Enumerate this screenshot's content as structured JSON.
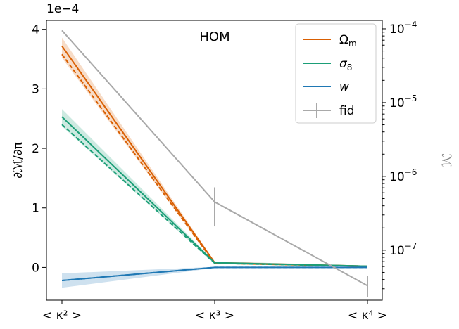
{
  "chart_data": {
    "type": "line",
    "categories": [
      "< κ² >",
      "< κ³ >",
      "< κ⁴ >"
    ],
    "annotation": "HOM",
    "left_axis": {
      "label": "∂ℳ/∂π",
      "offset_label": "1e−4",
      "ylim": [
        -0.55,
        4.15
      ],
      "ticks": [
        0,
        1,
        2,
        3,
        4
      ],
      "tick_labels": [
        "0",
        "1",
        "2",
        "3",
        "4"
      ]
    },
    "right_axis": {
      "label": "ℳ",
      "scale": "log",
      "ylim": [
        2.1e-08,
        0.00013
      ],
      "ticks": [
        1e-07,
        1e-06,
        1e-05,
        0.0001
      ],
      "tick_labels": [
        {
          "base": "10",
          "exp": "−7"
        },
        {
          "base": "10",
          "exp": "−6"
        },
        {
          "base": "10",
          "exp": "−5"
        },
        {
          "base": "10",
          "exp": "−4"
        }
      ]
    },
    "series": [
      {
        "name": "Ωm",
        "name_base": "Ω",
        "name_sub": "m",
        "color": "#d95f02",
        "values": [
          3.72,
          0.08,
          0.02
        ],
        "dashed": [
          3.58,
          0.07,
          0.02
        ],
        "band": [
          [
            3.52,
            3.86
          ],
          [
            0.06,
            0.1
          ],
          [
            0.01,
            0.03
          ]
        ]
      },
      {
        "name": "σ8",
        "name_base": "σ",
        "name_sub": "8",
        "color": "#1b9e77",
        "values": [
          2.53,
          0.08,
          0.02
        ],
        "dashed": [
          2.4,
          0.07,
          0.02
        ],
        "band": [
          [
            2.37,
            2.66
          ],
          [
            0.06,
            0.1
          ],
          [
            0.01,
            0.03
          ]
        ]
      },
      {
        "name": "w",
        "name_base": "w",
        "name_sub": "",
        "color": "#1f78b4",
        "values": [
          -0.22,
          0.0,
          0.0
        ],
        "dashed": [
          -0.22,
          0.0,
          0.0
        ],
        "band": [
          [
            -0.34,
            -0.1
          ],
          [
            -0.01,
            0.01
          ],
          [
            -0.01,
            0.01
          ]
        ]
      }
    ],
    "fid": {
      "name": "fid",
      "color": "#a9a9a9",
      "axis": "right",
      "values": [
        9.5e-05,
        4.5e-07,
        3.3e-08
      ],
      "errors_low": [
        0,
        2.4e-07,
        1e-08
      ],
      "errors_high": [
        0,
        2.6e-07,
        1.2e-08
      ]
    },
    "legend_placement": "top-right",
    "grid": false
  }
}
